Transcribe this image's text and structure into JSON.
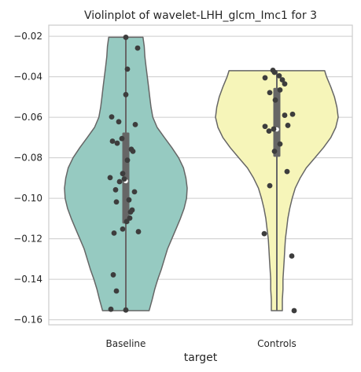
{
  "chart_data": {
    "type": "violin",
    "title": "Violinplot of wavelet-LHH_glcm_Imc1 for 3",
    "xlabel": "target",
    "ylabel": "",
    "ylim": [
      -0.1625,
      -0.0145
    ],
    "yticks": [
      -0.02,
      -0.04,
      -0.06,
      -0.08,
      -0.1,
      -0.12,
      -0.14,
      -0.16
    ],
    "ytick_labels": [
      "−0.02",
      "−0.04",
      "−0.06",
      "−0.08",
      "−0.10",
      "−0.12",
      "−0.14",
      "−0.16"
    ],
    "grid": true,
    "categories": [
      "Baseline",
      "Controls"
    ],
    "series": [
      {
        "color": "#96cac1",
        "ymin": -0.1555,
        "ymax": -0.0205,
        "q1": -0.1125,
        "median": -0.0915,
        "q3": -0.0675,
        "density": [
          [
            -0.1555,
            0.38
          ],
          [
            -0.15,
            0.43
          ],
          [
            -0.145,
            0.47
          ],
          [
            -0.14,
            0.52
          ],
          [
            -0.135,
            0.58
          ],
          [
            -0.13,
            0.63
          ],
          [
            -0.125,
            0.68
          ],
          [
            -0.12,
            0.75
          ],
          [
            -0.115,
            0.82
          ],
          [
            -0.11,
            0.89
          ],
          [
            -0.105,
            0.95
          ],
          [
            -0.1,
            0.99
          ],
          [
            -0.095,
            1.0
          ],
          [
            -0.09,
            0.98
          ],
          [
            -0.085,
            0.94
          ],
          [
            -0.08,
            0.86
          ],
          [
            -0.075,
            0.75
          ],
          [
            -0.07,
            0.63
          ],
          [
            -0.065,
            0.51
          ],
          [
            -0.06,
            0.44
          ],
          [
            -0.055,
            0.41
          ],
          [
            -0.05,
            0.39
          ],
          [
            -0.045,
            0.37
          ],
          [
            -0.04,
            0.35
          ],
          [
            -0.035,
            0.33
          ],
          [
            -0.03,
            0.31
          ],
          [
            -0.025,
            0.3
          ],
          [
            -0.0205,
            0.28
          ]
        ],
        "points": [
          [
            0.0,
            -0.0205
          ],
          [
            0.15,
            -0.0258
          ],
          [
            0.02,
            -0.0362
          ],
          [
            0.0,
            -0.0488
          ],
          [
            -0.18,
            -0.0598
          ],
          [
            0.12,
            -0.0636
          ],
          [
            -0.09,
            -0.0622
          ],
          [
            -0.05,
            -0.0705
          ],
          [
            -0.17,
            -0.0718
          ],
          [
            -0.11,
            -0.0728
          ],
          [
            0.07,
            -0.0758
          ],
          [
            0.09,
            -0.0768
          ],
          [
            0.02,
            -0.0812
          ],
          [
            -0.04,
            -0.0878
          ],
          [
            -0.2,
            -0.0898
          ],
          [
            -0.02,
            -0.0905
          ],
          [
            -0.08,
            -0.0918
          ],
          [
            -0.13,
            -0.0958
          ],
          [
            0.11,
            -0.0968
          ],
          [
            0.04,
            -0.1008
          ],
          [
            -0.12,
            -0.1018
          ],
          [
            0.08,
            -0.1058
          ],
          [
            0.06,
            -0.1068
          ],
          [
            0.05,
            -0.1098
          ],
          [
            0.01,
            -0.1115
          ],
          [
            -0.04,
            -0.1152
          ],
          [
            0.16,
            -0.1165
          ],
          [
            -0.15,
            -0.1172
          ],
          [
            -0.16,
            -0.1378
          ],
          [
            -0.12,
            -0.1458
          ],
          [
            -0.19,
            -0.1548
          ],
          [
            0.0,
            -0.1552
          ]
        ]
      },
      {
        "color": "#f6f5b9",
        "ymin": -0.1555,
        "ymax": -0.037,
        "q1": -0.0795,
        "median": -0.066,
        "q3": -0.0455,
        "density": [
          [
            -0.1555,
            0.09
          ],
          [
            -0.15,
            0.09
          ],
          [
            -0.145,
            0.1
          ],
          [
            -0.14,
            0.1
          ],
          [
            -0.135,
            0.11
          ],
          [
            -0.13,
            0.12
          ],
          [
            -0.125,
            0.13
          ],
          [
            -0.12,
            0.14
          ],
          [
            -0.115,
            0.16
          ],
          [
            -0.11,
            0.18
          ],
          [
            -0.105,
            0.21
          ],
          [
            -0.1,
            0.25
          ],
          [
            -0.095,
            0.3
          ],
          [
            -0.09,
            0.38
          ],
          [
            -0.085,
            0.48
          ],
          [
            -0.08,
            0.62
          ],
          [
            -0.075,
            0.76
          ],
          [
            -0.07,
            0.88
          ],
          [
            -0.065,
            0.96
          ],
          [
            -0.06,
            1.0
          ],
          [
            -0.055,
            0.98
          ],
          [
            -0.05,
            0.94
          ],
          [
            -0.045,
            0.88
          ],
          [
            -0.04,
            0.81
          ],
          [
            -0.037,
            0.78
          ]
        ],
        "points": [
          [
            -0.05,
            -0.0368
          ],
          [
            -0.03,
            -0.0378
          ],
          [
            0.03,
            -0.0395
          ],
          [
            0.07,
            -0.0415
          ],
          [
            -0.15,
            -0.0405
          ],
          [
            0.1,
            -0.0435
          ],
          [
            0.04,
            -0.0465
          ],
          [
            -0.09,
            -0.0478
          ],
          [
            -0.02,
            -0.0515
          ],
          [
            0.2,
            -0.0585
          ],
          [
            0.1,
            -0.059
          ],
          [
            -0.15,
            -0.0645
          ],
          [
            -0.1,
            -0.0668
          ],
          [
            0.14,
            -0.064
          ],
          [
            -0.04,
            -0.0658
          ],
          [
            0.04,
            -0.0732
          ],
          [
            -0.03,
            -0.0768
          ],
          [
            0.13,
            -0.0868
          ],
          [
            -0.09,
            -0.0938
          ],
          [
            -0.16,
            -0.1175
          ],
          [
            0.19,
            -0.1285
          ],
          [
            0.22,
            -0.1555
          ]
        ]
      }
    ]
  }
}
